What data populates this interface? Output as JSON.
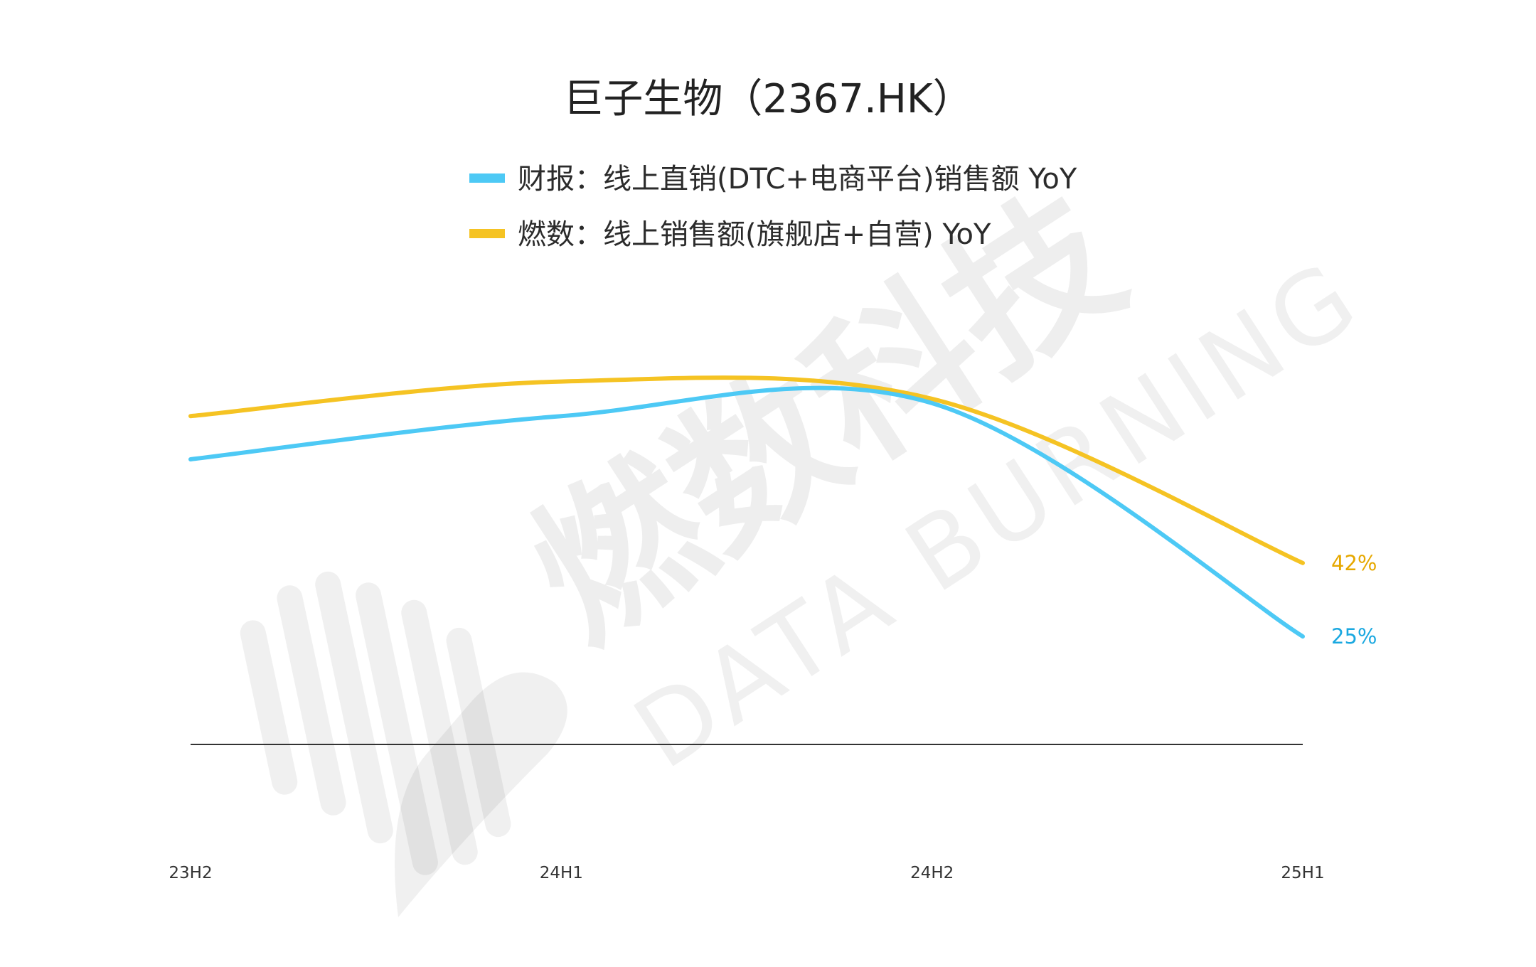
{
  "chart_data": {
    "type": "line",
    "title": "巨子生物（2367.HK）",
    "categories": [
      "23H2",
      "24H1",
      "24H2",
      "25H1"
    ],
    "series": [
      {
        "name": "财报：线上直销(DTC+电商平台)销售额 YoY",
        "color": "#4dc9f5",
        "label_color": "#1aa8e0",
        "values": [
          66,
          76,
          79,
          25
        ],
        "end_label": "25%"
      },
      {
        "name": "燃数：线上销售额(旗舰店+自营) YoY",
        "color": "#f5c323",
        "label_color": "#e6a800",
        "values": [
          76,
          84,
          80,
          42
        ],
        "end_label": "42%"
      }
    ],
    "ylim": [
      -26,
      118
    ],
    "xlabel": "",
    "ylabel": "",
    "grid": false,
    "legend_position": "top-center"
  },
  "watermark": {
    "cn_text": "燃数科技",
    "en_text": "DATA BURNING"
  }
}
